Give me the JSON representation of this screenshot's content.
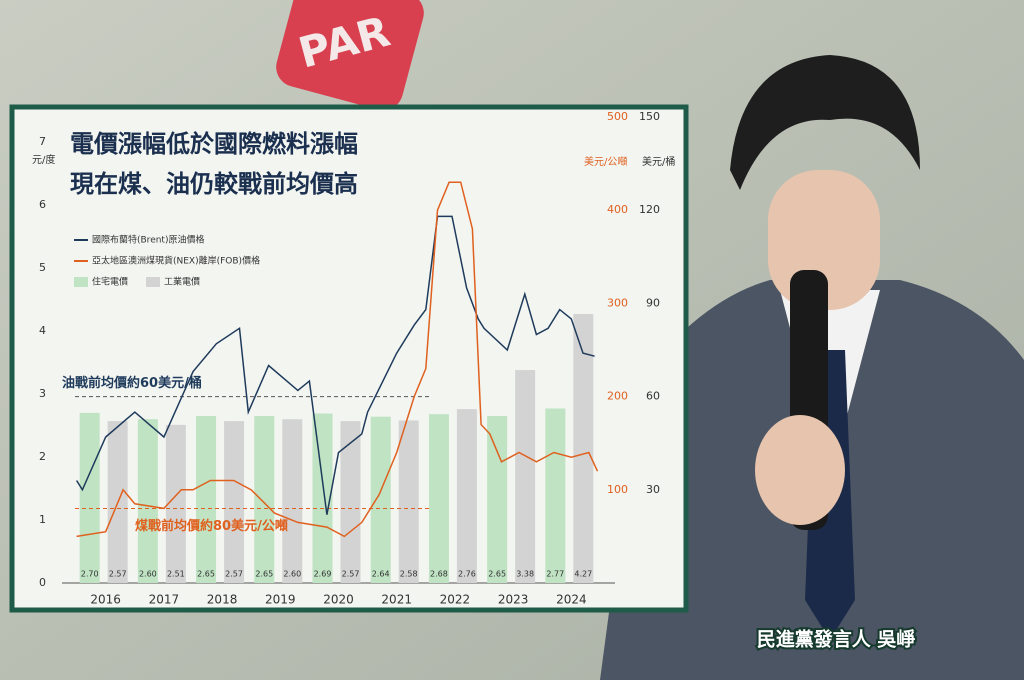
{
  "background_sign": "PAR",
  "caption": "民進黨發言人 吳崢",
  "chart_data": {
    "type": "bar_line",
    "title": [
      "電價漲幅低於國際燃料漲幅",
      "現在煤、油仍較戰前均價高"
    ],
    "y_label": "元/度",
    "y2_label": "美元/公噸",
    "y3_label": "美元/桶",
    "categories": [
      "2016",
      "2017",
      "2018",
      "2019",
      "2020",
      "2021",
      "2022",
      "2023",
      "2024"
    ],
    "ylim": [
      0,
      7
    ],
    "yticks": [
      0,
      1,
      2,
      3,
      4,
      5,
      6,
      7
    ],
    "y2lim": [
      0,
      500
    ],
    "y2ticks": [
      100,
      200,
      300,
      400,
      500
    ],
    "y3lim": [
      0,
      150
    ],
    "y3ticks": [
      30,
      60,
      90,
      120,
      150
    ],
    "xlim": [
      2015.75,
      2025.25
    ],
    "bar_series": [
      {
        "name": "住宅電價",
        "color": "#bfe3c3",
        "values": [
          2.7,
          2.6,
          2.65,
          2.65,
          2.69,
          2.64,
          2.68,
          2.65,
          2.77
        ],
        "value_labels": [
          "2.70",
          "2.60",
          "2.65",
          "2.65",
          "2.69",
          "2.64",
          "2.68",
          "2.65",
          "2.77"
        ]
      },
      {
        "name": "工業電價",
        "color": "#d3d3d3",
        "values": [
          2.57,
          2.51,
          2.57,
          2.6,
          2.57,
          2.58,
          2.76,
          3.38,
          4.27
        ],
        "value_labels": [
          "2.57",
          "2.51",
          "2.57",
          "2.60",
          "2.57",
          "2.58",
          "2.76",
          "3.38",
          "4.27"
        ]
      }
    ],
    "line_series": [
      {
        "name": "國際布蘭特(Brent)原油價格",
        "color": "#1f3b5c",
        "axis": "y3",
        "x": [
          2016.0,
          2016.1,
          2016.5,
          2017.0,
          2017.5,
          2018.0,
          2018.4,
          2018.8,
          2018.95,
          2019.3,
          2019.8,
          2020.0,
          2020.3,
          2020.5,
          2020.9,
          2021.0,
          2021.5,
          2021.8,
          2022.0,
          2022.2,
          2022.45,
          2022.7,
          2022.9,
          2023.0,
          2023.4,
          2023.7,
          2023.9,
          2024.1,
          2024.3,
          2024.5,
          2024.7,
          2024.9
        ],
        "values": [
          33,
          30,
          47,
          55,
          47,
          68,
          77,
          82,
          55,
          70,
          62,
          65,
          22,
          42,
          48,
          55,
          74,
          83,
          88,
          118,
          118,
          95,
          85,
          82,
          75,
          93,
          80,
          82,
          88,
          85,
          74,
          73
        ]
      },
      {
        "name": "亞太地區澳洲煤現貨(NEX)離岸(FOB)價格",
        "color": "#e0601e",
        "axis": "y2",
        "x": [
          2016.0,
          2016.5,
          2016.8,
          2017.0,
          2017.5,
          2017.8,
          2018.0,
          2018.3,
          2018.7,
          2019.0,
          2019.4,
          2019.8,
          2020.3,
          2020.6,
          2020.9,
          2021.2,
          2021.5,
          2021.8,
          2022.0,
          2022.2,
          2022.4,
          2022.6,
          2022.8,
          2022.95,
          2023.1,
          2023.3,
          2023.6,
          2023.9,
          2024.2,
          2024.5,
          2024.8,
          2024.95
        ],
        "values": [
          50,
          55,
          100,
          85,
          80,
          100,
          100,
          110,
          110,
          100,
          75,
          65,
          60,
          50,
          65,
          95,
          140,
          200,
          230,
          400,
          430,
          430,
          380,
          170,
          160,
          130,
          140,
          130,
          140,
          135,
          140,
          120
        ]
      }
    ],
    "reference_lines": [
      {
        "label": "油戰前均價約60美元/桶",
        "value": 60,
        "axis": "y3",
        "color": "#555555"
      },
      {
        "label": "煤戰前均價約80美元/公噸",
        "value": 80,
        "axis": "y2",
        "color": "#e0601e"
      }
    ]
  }
}
